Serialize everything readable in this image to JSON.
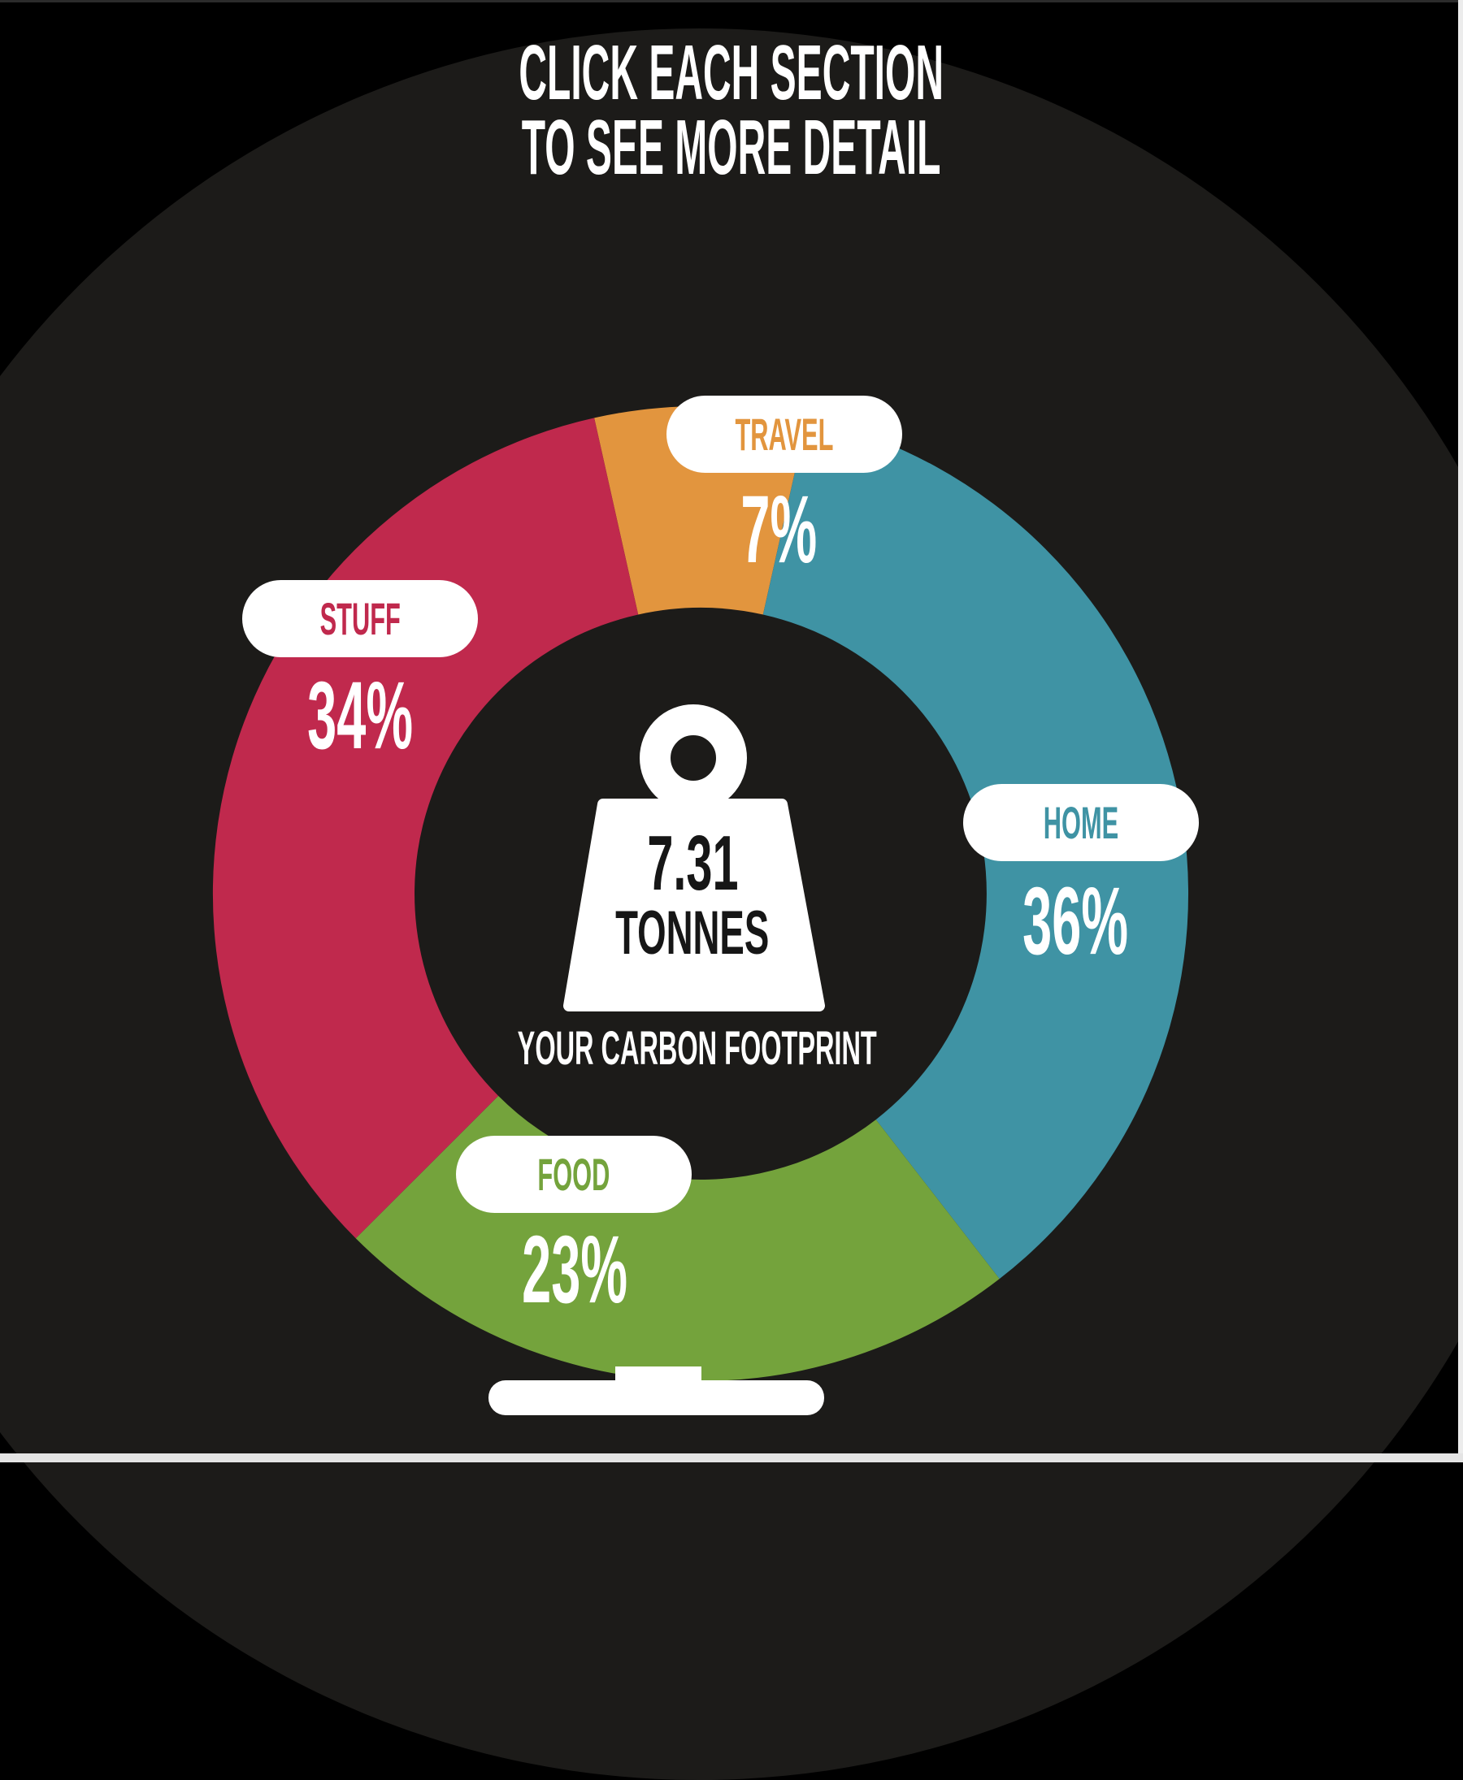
{
  "page": {
    "background": "#000000",
    "panel_circle_color": "#1c1b19",
    "white": "#ffffff",
    "center_text_color": "#161616"
  },
  "title": {
    "line1": "CLICK EACH SECTION",
    "line2": "TO SEE MORE DETAIL"
  },
  "chart_data": {
    "type": "pie",
    "donut": true,
    "title": "CLICK EACH SECTION TO SEE MORE DETAIL",
    "start_angle_deg": -12.6,
    "legend_position": "around-ring",
    "center_total": "7.31",
    "center_unit": "TONNES",
    "center_caption": "YOUR CARBON FOOTPRINT",
    "segments": [
      {
        "label": "TRAVEL",
        "percent": 7,
        "percent_label": "7%",
        "color": "#e2953e"
      },
      {
        "label": "HOME",
        "percent": 36,
        "percent_label": "36%",
        "color": "#3f93a4"
      },
      {
        "label": "FOOD",
        "percent": 23,
        "percent_label": "23%",
        "color": "#74a33c"
      },
      {
        "label": "STUFF",
        "percent": 34,
        "percent_label": "34%",
        "color": "#c0294d"
      }
    ]
  }
}
